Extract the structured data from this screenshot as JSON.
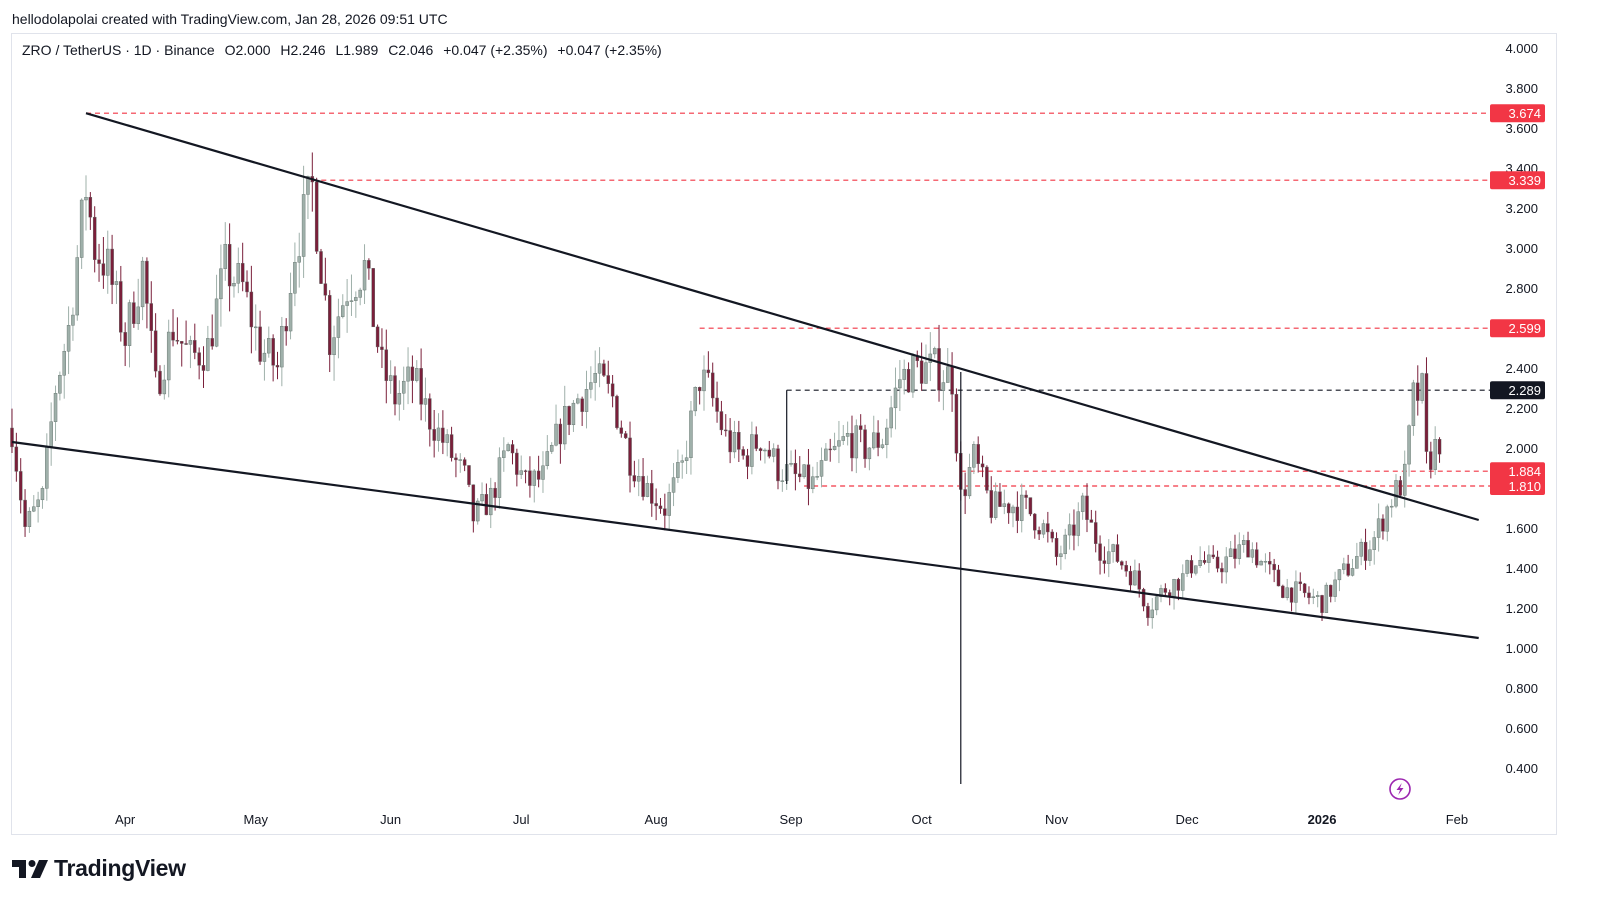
{
  "header": {
    "credit": "hellodolapolai created with TradingView.com, Jan 28, 2026 09:51 UTC"
  },
  "legend": {
    "symbol": "ZRO / TetherUS · 1D · Binance",
    "open": "O2.000",
    "high": "H2.246",
    "low": "L1.989",
    "close": "C2.046",
    "change1": "+0.047 (+2.35%)",
    "change2": "+0.047 (+2.35%)"
  },
  "footer": {
    "brand": "TradingView"
  },
  "colors": {
    "up_candle": "#9fb0aa",
    "down_candle": "#7a1f3a",
    "level_red": "#f23645",
    "level_black": "#131722",
    "trendline": "#131722",
    "axis_text": "#131722",
    "flash_icon": "#9c27b0"
  },
  "chart_data": {
    "type": "candlestick",
    "symbol": "ZRO/USDT",
    "interval": "1D",
    "exchange": "Binance",
    "ylim": [
      0.32,
      4.0
    ],
    "y_scale": "linear",
    "y_ticks": [
      "4.000",
      "3.800",
      "3.600",
      "3.400",
      "3.200",
      "3.000",
      "2.800",
      "2.600",
      "2.400",
      "2.200",
      "2.000",
      "1.800",
      "1.600",
      "1.400",
      "1.200",
      "1.000",
      "0.800",
      "0.600",
      "0.400"
    ],
    "x_ticks": [
      {
        "label": "Apr",
        "date": "2025-04-01",
        "bold": false
      },
      {
        "label": "May",
        "date": "2025-05-01",
        "bold": false
      },
      {
        "label": "Jun",
        "date": "2025-06-01",
        "bold": false
      },
      {
        "label": "Jul",
        "date": "2025-07-01",
        "bold": false
      },
      {
        "label": "Aug",
        "date": "2025-08-01",
        "bold": false
      },
      {
        "label": "Sep",
        "date": "2025-09-01",
        "bold": false
      },
      {
        "label": "Oct",
        "date": "2025-10-01",
        "bold": false
      },
      {
        "label": "Nov",
        "date": "2025-11-01",
        "bold": false
      },
      {
        "label": "Dec",
        "date": "2025-12-01",
        "bold": false
      },
      {
        "label": "2026",
        "date": "2026-01-01",
        "bold": true
      },
      {
        "label": "Feb",
        "date": "2026-02-01",
        "bold": false
      }
    ],
    "x_range": [
      "2025-03-06",
      "2026-02-04"
    ],
    "price_path": [
      [
        "2025-03-06",
        2.1
      ],
      [
        "2025-03-09",
        1.6
      ],
      [
        "2025-03-13",
        1.75
      ],
      [
        "2025-03-16",
        2.3
      ],
      [
        "2025-03-19",
        2.6
      ],
      [
        "2025-03-23",
        3.3
      ],
      [
        "2025-03-25",
        3.0
      ],
      [
        "2025-03-28",
        2.9
      ],
      [
        "2025-04-01",
        2.55
      ],
      [
        "2025-04-05",
        2.9
      ],
      [
        "2025-04-08",
        2.3
      ],
      [
        "2025-04-12",
        2.6
      ],
      [
        "2025-04-16",
        2.45
      ],
      [
        "2025-04-20",
        2.5
      ],
      [
        "2025-04-24",
        2.9
      ],
      [
        "2025-04-28",
        2.8
      ],
      [
        "2025-05-02",
        2.5
      ],
      [
        "2025-05-06",
        2.4
      ],
      [
        "2025-05-10",
        3.0
      ],
      [
        "2025-05-14",
        3.3
      ],
      [
        "2025-05-18",
        2.55
      ],
      [
        "2025-05-22",
        2.8
      ],
      [
        "2025-05-26",
        2.9
      ],
      [
        "2025-05-30",
        2.4
      ],
      [
        "2025-06-02",
        2.25
      ],
      [
        "2025-06-06",
        2.35
      ],
      [
        "2025-06-10",
        2.15
      ],
      [
        "2025-06-14",
        2.0
      ],
      [
        "2025-06-18",
        1.85
      ],
      [
        "2025-06-20",
        1.65
      ],
      [
        "2025-06-24",
        1.75
      ],
      [
        "2025-06-28",
        2.0
      ],
      [
        "2025-07-02",
        1.82
      ],
      [
        "2025-07-06",
        1.85
      ],
      [
        "2025-07-10",
        2.1
      ],
      [
        "2025-07-14",
        2.25
      ],
      [
        "2025-07-18",
        2.35
      ],
      [
        "2025-07-22",
        2.25
      ],
      [
        "2025-07-26",
        1.95
      ],
      [
        "2025-07-30",
        1.8
      ],
      [
        "2025-08-03",
        1.7
      ],
      [
        "2025-08-07",
        1.9
      ],
      [
        "2025-08-11",
        2.35
      ],
      [
        "2025-08-13",
        2.3
      ],
      [
        "2025-08-17",
        2.05
      ],
      [
        "2025-08-21",
        1.95
      ],
      [
        "2025-08-25",
        2.05
      ],
      [
        "2025-08-29",
        1.9
      ],
      [
        "2025-09-02",
        1.85
      ],
      [
        "2025-09-06",
        1.82
      ],
      [
        "2025-09-10",
        1.95
      ],
      [
        "2025-09-14",
        2.05
      ],
      [
        "2025-09-18",
        2.0
      ],
      [
        "2025-09-22",
        2.05
      ],
      [
        "2025-09-26",
        2.35
      ],
      [
        "2025-09-30",
        2.4
      ],
      [
        "2025-10-04",
        2.4
      ],
      [
        "2025-10-08",
        2.35
      ],
      [
        "2025-10-10",
        1.75
      ],
      [
        "2025-10-13",
        1.95
      ],
      [
        "2025-10-17",
        1.7
      ],
      [
        "2025-10-21",
        1.72
      ],
      [
        "2025-10-25",
        1.7
      ],
      [
        "2025-10-29",
        1.6
      ],
      [
        "2025-11-01",
        1.45
      ],
      [
        "2025-11-04",
        1.55
      ],
      [
        "2025-11-07",
        1.7
      ],
      [
        "2025-11-11",
        1.5
      ],
      [
        "2025-11-15",
        1.45
      ],
      [
        "2025-11-19",
        1.35
      ],
      [
        "2025-11-22",
        1.2
      ],
      [
        "2025-11-26",
        1.3
      ],
      [
        "2025-11-30",
        1.35
      ],
      [
        "2025-12-03",
        1.45
      ],
      [
        "2025-12-07",
        1.4
      ],
      [
        "2025-12-11",
        1.45
      ],
      [
        "2025-12-15",
        1.52
      ],
      [
        "2025-12-19",
        1.4
      ],
      [
        "2025-12-23",
        1.3
      ],
      [
        "2025-12-27",
        1.27
      ],
      [
        "2026-01-01",
        1.23
      ],
      [
        "2026-01-05",
        1.35
      ],
      [
        "2026-01-09",
        1.45
      ],
      [
        "2026-01-13",
        1.55
      ],
      [
        "2026-01-17",
        1.75
      ],
      [
        "2026-01-20",
        1.85
      ],
      [
        "2026-01-22",
        2.25
      ],
      [
        "2026-01-24",
        2.28
      ],
      [
        "2026-01-25",
        1.92
      ],
      [
        "2026-01-27",
        2.0
      ],
      [
        "2026-01-28",
        2.046
      ]
    ],
    "horizontal_levels": [
      {
        "value": 3.674,
        "label": "3.674",
        "color": "#f23645",
        "from_date": "2025-03-23"
      },
      {
        "value": 3.339,
        "label": "3.339",
        "color": "#f23645",
        "from_date": "2025-05-14"
      },
      {
        "value": 2.599,
        "label": "2.599",
        "color": "#f23645",
        "from_date": "2025-08-11"
      },
      {
        "value": 2.289,
        "label": "2.289",
        "color": "#131722",
        "from_date": "2025-08-31"
      },
      {
        "value": 1.884,
        "label": "1.884",
        "color": "#f23645",
        "from_date": "2025-10-10"
      },
      {
        "value": 1.81,
        "label": "1.810",
        "color": "#f23645",
        "from_date": "2025-09-04"
      }
    ],
    "trendlines": [
      {
        "name": "upper",
        "from": [
          "2025-03-23",
          3.674
        ],
        "to": [
          "2026-02-06",
          1.64
        ]
      },
      {
        "name": "lower",
        "from": [
          "2025-03-06",
          2.03
        ],
        "to": [
          "2026-02-06",
          1.05
        ]
      },
      {
        "name": "spike",
        "from": [
          "2025-10-10",
          2.38
        ],
        "to": [
          "2025-10-10",
          0.32
        ]
      },
      {
        "name": "bracket",
        "from": [
          "2025-08-31",
          2.289
        ],
        "to": [
          "2025-08-31",
          1.82
        ]
      }
    ]
  }
}
